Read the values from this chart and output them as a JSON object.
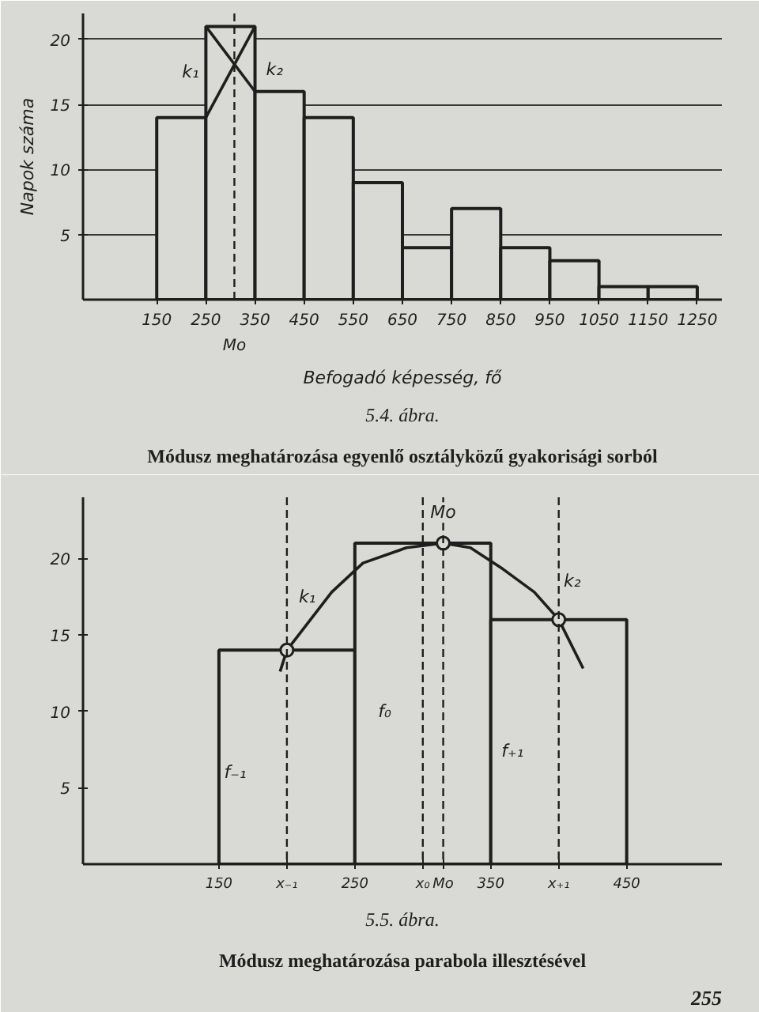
{
  "chart_data": [
    {
      "type": "histogram",
      "title": "Módusz meghatározása egyenlő osztályközű gyakorisági sorból",
      "subtitle": "5.4. ábra.",
      "xlabel": "Befogadó képesség, fő",
      "ylabel": "Napok száma",
      "bins": [
        150,
        250,
        350,
        450,
        550,
        650,
        750,
        850,
        950,
        1050,
        1150,
        1250
      ],
      "values": [
        14,
        21,
        16,
        14,
        9,
        4,
        7,
        4,
        3,
        1,
        1
      ],
      "color": "#1e1e1e",
      "series": [
        {
          "type": "line",
          "x": [
            250,
            350
          ],
          "values": [
            21,
            16
          ],
          "color": "#1e1e1e",
          "line_style": "solid"
        },
        {
          "type": "line",
          "x": [
            350,
            250
          ],
          "values": [
            21,
            14
          ],
          "color": "#1e1e1e",
          "line_style": "solid"
        }
      ],
      "xlim": [
        0,
        1300
      ],
      "ylim": [
        0,
        22
      ],
      "xticks": [
        150,
        250,
        350,
        450,
        550,
        650,
        750,
        850,
        950,
        1050,
        1150,
        1250
      ],
      "yticks": [
        5,
        10,
        15,
        20
      ],
      "grid": "y",
      "ref_lines": [
        {
          "axis": "x",
          "value": 308,
          "label": "Mo",
          "line_style": "dashed"
        }
      ],
      "annotations": [
        "k₁",
        "k₂"
      ]
    },
    {
      "type": "histogram",
      "title": "Módusz meghatározása parabola illesztésével",
      "subtitle": "5.5. ábra.",
      "bins": [
        150,
        250,
        350,
        450
      ],
      "values": [
        14,
        21,
        16
      ],
      "color": "#1e1e1e",
      "series": [
        {
          "type": "line",
          "x": [
            195,
            200,
            233,
            256,
            288,
            315,
            335,
            359,
            382,
            400,
            418
          ],
          "values": [
            12.6,
            14,
            17.8,
            19.7,
            20.7,
            21,
            20.7,
            19.3,
            17.8,
            16,
            12.8
          ],
          "color": "#1e1e1e",
          "line_style": "solid"
        },
        {
          "type": "scatter",
          "x": [
            200,
            315,
            400
          ],
          "values": [
            14,
            21,
            16
          ],
          "color": "#1e1e1e",
          "marker": "circle"
        }
      ],
      "xlim": [
        50,
        520
      ],
      "ylim": [
        0,
        24
      ],
      "xticks": [
        150,
        {
          "value": 200,
          "label": "x₋₁"
        },
        250,
        {
          "value": 300,
          "label": "x₀"
        },
        {
          "value": 315,
          "label": "Mo"
        },
        350,
        {
          "value": 400,
          "label": "x₊₁"
        },
        450
      ],
      "yticks": [
        5,
        10,
        15,
        20
      ],
      "ref_lines": [
        {
          "axis": "x",
          "value": 200,
          "label": null,
          "line_style": "dashed"
        },
        {
          "axis": "x",
          "value": 300,
          "label": null,
          "line_style": "dashed"
        },
        {
          "axis": "x",
          "value": 315,
          "label": null,
          "line_style": "dashed"
        },
        {
          "axis": "x",
          "value": 400,
          "label": null,
          "line_style": "dashed"
        }
      ],
      "annotations": [
        {
          "text": "Mo",
          "x": 315,
          "y": 23
        },
        "k₁",
        "k₂",
        "f₋₁",
        "f₀",
        "f₊₁",
        "255"
      ]
    }
  ]
}
